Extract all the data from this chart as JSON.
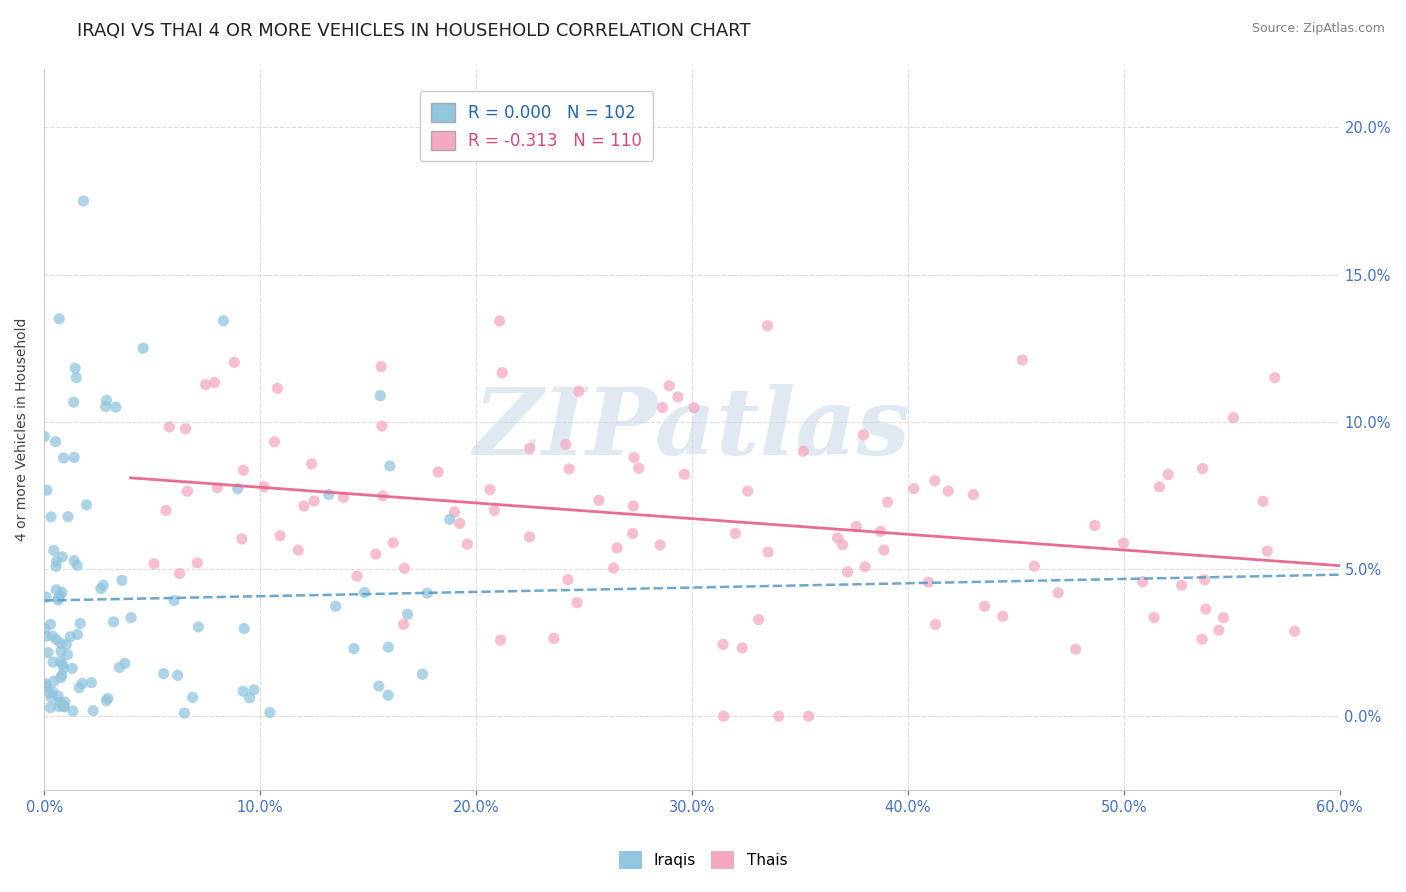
{
  "title": "IRAQI VS THAI 4 OR MORE VEHICLES IN HOUSEHOLD CORRELATION CHART",
  "source": "Source: ZipAtlas.com",
  "ylabel_label": "4 or more Vehicles in Household",
  "xlim": [
    0.0,
    0.6
  ],
  "ylim": [
    -0.025,
    0.22
  ],
  "xticks": [
    0.0,
    0.1,
    0.2,
    0.3,
    0.4,
    0.5,
    0.6
  ],
  "xtick_labels": [
    "0.0%",
    "10.0%",
    "20.0%",
    "30.0%",
    "40.0%",
    "50.0%",
    "60.0%"
  ],
  "yticks": [
    0.0,
    0.05,
    0.1,
    0.15,
    0.2
  ],
  "ytick_labels": [
    "0.0%",
    "5.0%",
    "10.0%",
    "15.0%",
    "20.0%"
  ],
  "watermark_text": "ZIPatlas",
  "legend_r1": "0.000",
  "legend_n1": "102",
  "legend_r2": "-0.313",
  "legend_n2": "110",
  "iraqi_color": "#92c5de",
  "thai_color": "#f4a9c0",
  "iraqi_trend_color": "#5b9ec9",
  "thai_trend_color": "#e8658a",
  "legend_text_color1": "#2166ac",
  "legend_text_color2": "#d6487e",
  "axis_tick_color": "#4472c4",
  "background_color": "#ffffff",
  "grid_color": "#d9d9d9",
  "title_fontsize": 13,
  "label_fontsize": 10,
  "tick_fontsize": 10.5,
  "source_fontsize": 9
}
